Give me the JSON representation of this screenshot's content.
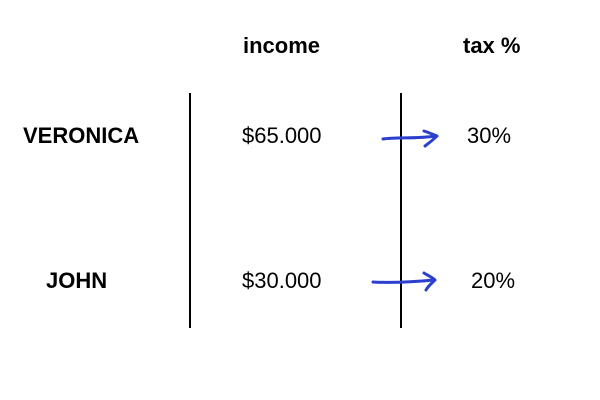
{
  "headers": {
    "income": "income",
    "tax": "tax %"
  },
  "rows": [
    {
      "name": "VERONICA",
      "income": "$65.000",
      "tax": "30%"
    },
    {
      "name": "JOHN",
      "income": "$30.000",
      "tax": "20%"
    }
  ],
  "colors": {
    "text": "#000000",
    "arrow": "#2b3fcf",
    "divider": "#000000"
  },
  "icons": {
    "arrow": "hand-drawn-right-arrow-icon"
  }
}
